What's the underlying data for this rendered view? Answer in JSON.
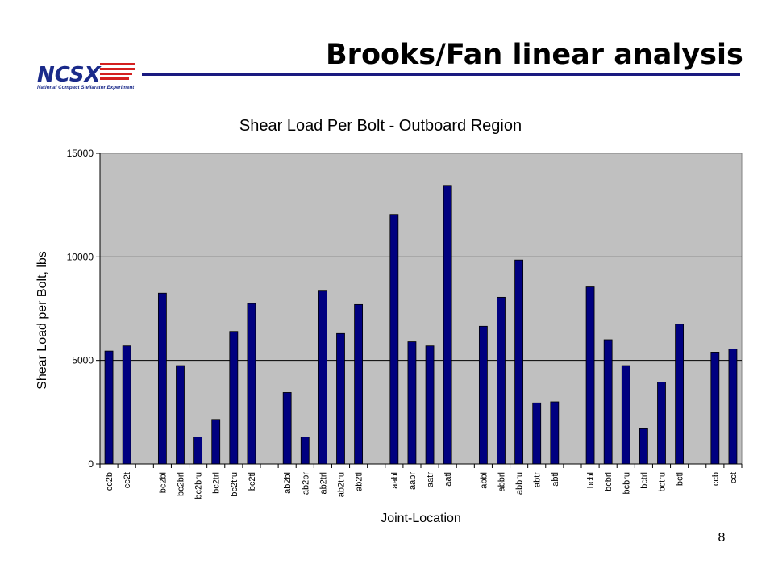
{
  "slide": {
    "title": "Brooks/Fan linear analysis",
    "page_number": "8",
    "logo_text": "NCSX",
    "logo_subtitle": "National Compact Stellarator Experiment"
  },
  "colors": {
    "bar": "#000080",
    "plot_bg": "#c0c0c0",
    "title_rule": "#1a1a80",
    "logo_red": "#d42020",
    "logo_blue": "#1a2a8a"
  },
  "chart_data": {
    "type": "bar",
    "title": "Shear Load Per Bolt - Outboard Region",
    "xlabel": "Joint-Location",
    "ylabel": "Shear Load per Bolt, lbs",
    "ylim": [
      0,
      15000
    ],
    "yticks": [
      0,
      5000,
      10000,
      15000
    ],
    "ytick_labels": [
      "0",
      "5000",
      "10000",
      "15000"
    ],
    "grid": "horizontal major",
    "legend": "none",
    "categories": [
      "cc2b",
      "cc2t",
      "",
      "bc2bl",
      "bc2brl",
      "bc2bru",
      "bc2trl",
      "bc2tru",
      "bc2tl",
      "",
      "ab2bl",
      "ab2br",
      "ab2trl",
      "ab2tru",
      "ab2tl",
      "",
      "aabl",
      "aabr",
      "aatr",
      "aatl",
      "",
      "abbl",
      "abbrl",
      "abbru",
      "abtr",
      "abtl",
      "",
      "bcbl",
      "bcbrl",
      "bcbru",
      "bctrl",
      "bctru",
      "bctl",
      "",
      "ccb",
      "cct"
    ],
    "values": [
      5450,
      5700,
      null,
      8250,
      4750,
      1300,
      2150,
      6400,
      7750,
      null,
      3450,
      1300,
      8350,
      6300,
      7700,
      null,
      12050,
      5900,
      5700,
      13450,
      null,
      6650,
      8050,
      9850,
      2950,
      3000,
      null,
      8550,
      6000,
      4750,
      1700,
      3950,
      6750,
      null,
      5400,
      5550
    ]
  }
}
